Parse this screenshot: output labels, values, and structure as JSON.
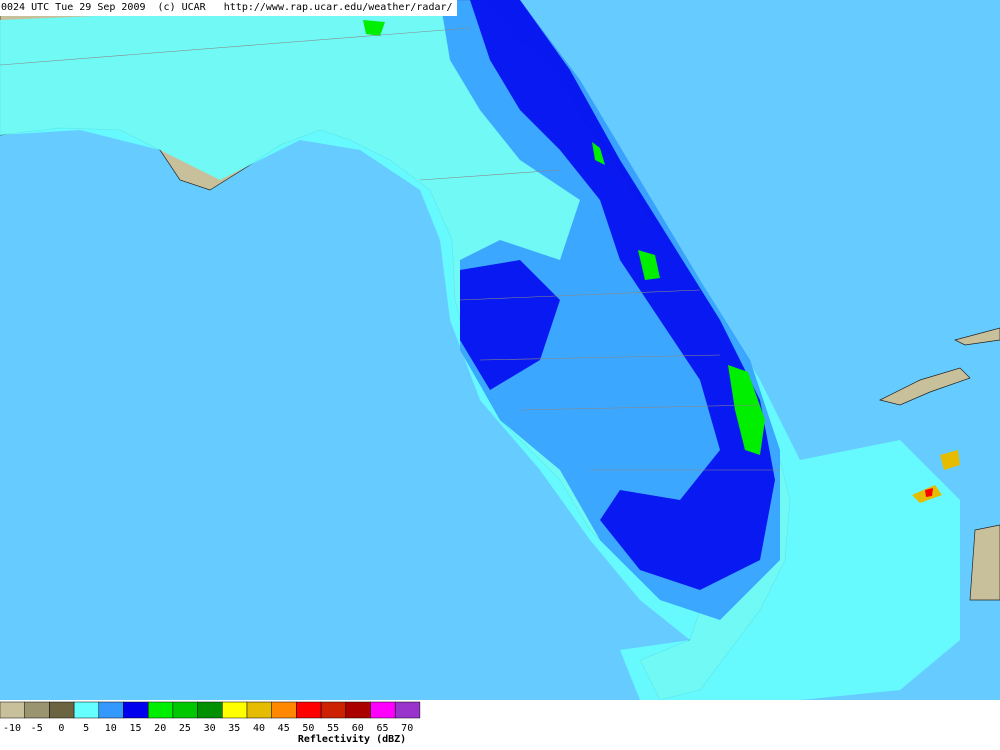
{
  "header": {
    "title": "0024 UTC Tue 29 Sep 2009  (c) UCAR   http://www.rap.ucar.edu/weather/radar/"
  },
  "legend": {
    "title": "Reflectivity (dBZ)",
    "ticks": [
      "-10",
      "-5",
      "0",
      "5",
      "10",
      "15",
      "20",
      "25",
      "30",
      "35",
      "40",
      "45",
      "50",
      "55",
      "60",
      "65",
      "70"
    ],
    "colors": [
      "#c8c09a",
      "#9a9470",
      "#6c6440",
      "#66ffff",
      "#3399ff",
      "#0000ee",
      "#00ee00",
      "#00c800",
      "#009000",
      "#ffff00",
      "#e6bc00",
      "#ff8800",
      "#ff0000",
      "#cc2200",
      "#aa0000",
      "#ff00ff",
      "#9933cc"
    ]
  }
}
